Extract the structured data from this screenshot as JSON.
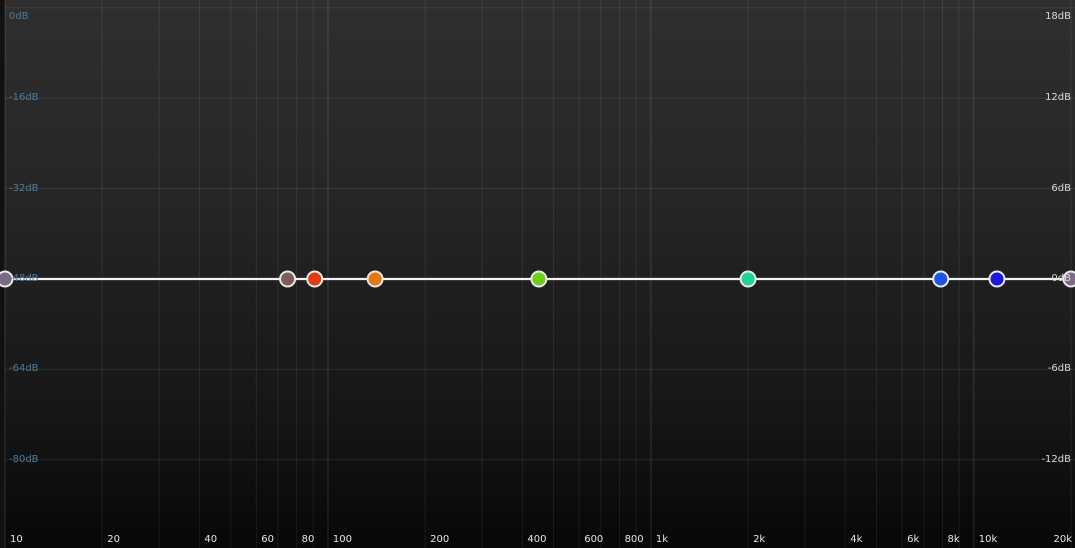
{
  "eq": {
    "gain_axis_left": [
      "0dB",
      "-16dB",
      "-32dB",
      "-48dB",
      "-64dB",
      "-80dB"
    ],
    "gain_axis_right": [
      "18dB",
      "12dB",
      "6dB",
      "0dB",
      "-6dB",
      "-12dB"
    ],
    "freq_labels": [
      {
        "hz": 10,
        "text": "10"
      },
      {
        "hz": 20,
        "text": "20"
      },
      {
        "hz": 40,
        "text": "40"
      },
      {
        "hz": 60,
        "text": "60"
      },
      {
        "hz": 80,
        "text": "80"
      },
      {
        "hz": 100,
        "text": "100"
      },
      {
        "hz": 200,
        "text": "200"
      },
      {
        "hz": 400,
        "text": "400"
      },
      {
        "hz": 600,
        "text": "600"
      },
      {
        "hz": 800,
        "text": "800"
      },
      {
        "hz": 1000,
        "text": "1k"
      },
      {
        "hz": 2000,
        "text": "2k"
      },
      {
        "hz": 4000,
        "text": "4k"
      },
      {
        "hz": 6000,
        "text": "6k"
      },
      {
        "hz": 8000,
        "text": "8k"
      },
      {
        "hz": 10000,
        "text": "10k"
      },
      {
        "hz": 20000,
        "text": "20k"
      }
    ],
    "freq_range_hz": [
      10,
      20000
    ],
    "gain_range_db": [
      -12,
      18
    ],
    "curve_gain_db": 0,
    "bands": [
      {
        "name": "band-low-edge",
        "hz": 10,
        "gain_db": 0,
        "color": "#7a6a8a"
      },
      {
        "name": "band-1",
        "hz": 75,
        "gain_db": 0,
        "color": "#7b5f5f"
      },
      {
        "name": "band-2",
        "hz": 91,
        "gain_db": 0,
        "color": "#e23a12"
      },
      {
        "name": "band-3",
        "hz": 140,
        "gain_db": 0,
        "color": "#e6780f"
      },
      {
        "name": "band-4",
        "hz": 450,
        "gain_db": 0,
        "color": "#6fcf18"
      },
      {
        "name": "band-5",
        "hz": 2000,
        "gain_db": 0,
        "color": "#1fd39a"
      },
      {
        "name": "band-6",
        "hz": 7900,
        "gain_db": 0,
        "color": "#1b55e0"
      },
      {
        "name": "band-7",
        "hz": 11800,
        "gain_db": 0,
        "color": "#1a1ad8"
      },
      {
        "name": "band-high-edge",
        "hz": 20000,
        "gain_db": 0,
        "color": "#7a6a8a"
      }
    ]
  }
}
